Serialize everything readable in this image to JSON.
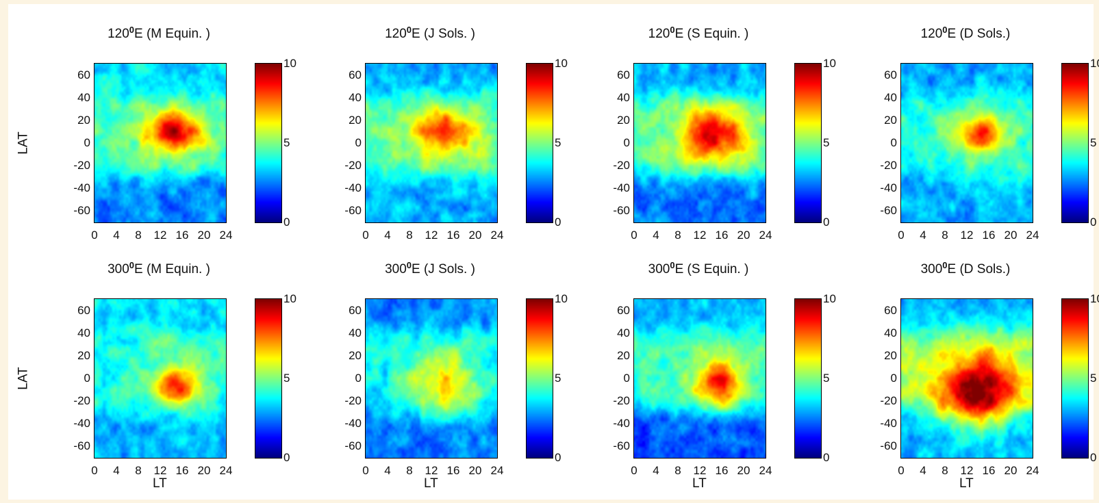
{
  "chart_data": {
    "type": "heatmap",
    "colorscale": "jet",
    "colorbar_range": [
      0,
      10
    ],
    "colorbar_ticks": [
      "10",
      "5",
      "0"
    ],
    "x_ticks": [
      "0",
      "4",
      "8",
      "12",
      "16",
      "20",
      "24"
    ],
    "y_ticks": [
      "60",
      "40",
      "20",
      "0",
      "-20",
      "-40",
      "-60"
    ],
    "xlim": [
      0,
      24
    ],
    "ylim": [
      -70,
      70
    ],
    "xlabel": "LT",
    "ylabel": "LAT",
    "panels": [
      {
        "row": 0,
        "col": 0,
        "title_main": "120",
        "title_sup": "0",
        "title_rest": "E (M  Equin. )",
        "background_low": [
          0.35,
          0.25
        ],
        "peak": {
          "lt": 14.5,
          "lat": 10,
          "value": 8.8,
          "spread_lt": 3.5,
          "spread_lat": 12
        },
        "band_value": 4.3
      },
      {
        "row": 0,
        "col": 1,
        "title_main": "120",
        "title_sup": "0",
        "title_rest": "E (J  Sols.  )",
        "background_low": [
          0.3,
          0.3
        ],
        "peak": {
          "lt": 14.5,
          "lat": 10,
          "value": 7.6,
          "spread_lt": 4,
          "spread_lat": 12
        },
        "band_value": 4.6
      },
      {
        "row": 0,
        "col": 2,
        "title_main": "120",
        "title_sup": "0",
        "title_rest": "E (S  Equin. )",
        "background_low": [
          0.3,
          0.25
        ],
        "peak": {
          "lt": 14.5,
          "lat": 8,
          "value": 8.4,
          "spread_lt": 4,
          "spread_lat": 15
        },
        "band_value": 4.5
      },
      {
        "row": 0,
        "col": 3,
        "title_main": "120",
        "title_sup": "0",
        "title_rest": "E (D  Sols.)",
        "background_low": [
          0.3,
          0.3
        ],
        "peak": {
          "lt": 14.5,
          "lat": 8,
          "value": 7.6,
          "spread_lt": 3,
          "spread_lat": 11
        },
        "band_value": 4.0
      },
      {
        "row": 1,
        "col": 0,
        "title_main": "300",
        "title_sup": "0",
        "title_rest": "E (M  Equin. )",
        "background_low": [
          0.35,
          0.3
        ],
        "peak": {
          "lt": 15,
          "lat": -8,
          "value": 8.0,
          "spread_lt": 2.5,
          "spread_lat": 11
        },
        "band_value": 4.0
      },
      {
        "row": 1,
        "col": 1,
        "title_main": "300",
        "title_sup": "0",
        "title_rest": "E (J  Sols.  )",
        "background_low": [
          0.25,
          0.25
        ],
        "peak": {
          "lt": 14,
          "lat": -5,
          "value": 5.8,
          "spread_lt": 4.5,
          "spread_lat": 20
        },
        "band_value": 3.6
      },
      {
        "row": 1,
        "col": 2,
        "title_main": "300",
        "title_sup": "0",
        "title_rest": "E (S  Equin. )",
        "background_low": [
          0.3,
          0.2
        ],
        "peak": {
          "lt": 15.5,
          "lat": -5,
          "value": 8.0,
          "spread_lt": 2.8,
          "spread_lat": 14
        },
        "band_value": 4.2
      },
      {
        "row": 1,
        "col": 3,
        "title_main": "300",
        "title_sup": "0",
        "title_rest": "E (D  Sols.)",
        "background_low": [
          0.3,
          0.3
        ],
        "peak": {
          "lt": 14,
          "lat": -12,
          "value": 9.5,
          "spread_lt": 5,
          "spread_lat": 20
        },
        "band_value": 5.3
      }
    ]
  }
}
